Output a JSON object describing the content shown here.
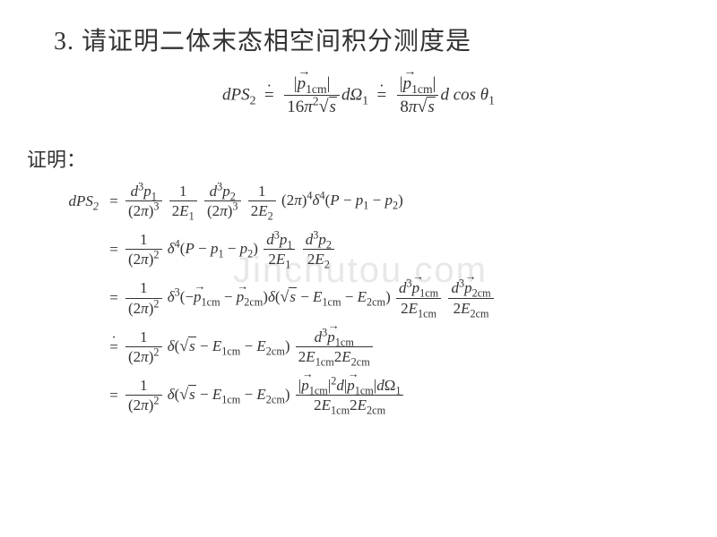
{
  "colors": {
    "background": "#ffffff",
    "text": "#333333",
    "watermark": "#e8e8e8"
  },
  "title": "3. 请证明二体末态相空间积分测度是",
  "proof_label": "证明：",
  "watermark": "Jinchutou.com",
  "top_formula": {
    "lhs": "dPS",
    "lhs_sub": "2",
    "rel1": "=",
    "frac1_num_vec": "p",
    "frac1_num_sub": "1cm",
    "frac1_den_a": "16",
    "frac1_den_pi": "π",
    "frac1_den_exp": "2",
    "frac1_den_sqrt": "s",
    "mid1": "dΩ",
    "mid1_sub": "1",
    "rel2": "=",
    "frac2_num_vec": "p",
    "frac2_num_sub": "1cm",
    "frac2_den_a": "8",
    "frac2_den_pi": "π",
    "frac2_den_sqrt": "s",
    "tail": "d cos θ",
    "tail_sub": "1"
  },
  "rows": [
    {
      "lhs": "dPS",
      "lhs_sub": "2",
      "eq": "=",
      "rhs_html": "<span class='frac'><span class='num'><span class='mi'>d</span><sup>3</sup><span class='mi'>p</span><sub>1</sub></span><span class='den'>(2<span class='mi'>π</span>)<sup>3</sup></span></span> <span class='frac'><span class='num'>1</span><span class='den'>2<span class='mi'>E</span><sub>1</sub></span></span> <span class='frac'><span class='num'><span class='mi'>d</span><sup>3</sup><span class='mi'>p</span><sub>2</sub></span><span class='den'>(2<span class='mi'>π</span>)<sup>3</sup></span></span> <span class='frac'><span class='num'>1</span><span class='den'>2<span class='mi'>E</span><sub>2</sub></span></span> (2<span class='mi'>π</span>)<sup>4</sup><span class='mi'>δ</span><sup>4</sup>(<span class='mi'>P</span> − <span class='mi'>p</span><sub>1</sub> − <span class='mi'>p</span><sub>2</sub>)"
    },
    {
      "lhs": "",
      "eq": "=",
      "rhs_html": "<span class='frac'><span class='num'>1</span><span class='den'>(2<span class='mi'>π</span>)<sup>2</sup></span></span> <span class='mi'>δ</span><sup>4</sup>(<span class='mi'>P</span> − <span class='mi'>p</span><sub>1</sub> − <span class='mi'>p</span><sub>2</sub>) <span class='frac'><span class='num'><span class='mi'>d</span><sup>3</sup><span class='mi'>p</span><sub>1</sub></span><span class='den'>2<span class='mi'>E</span><sub>1</sub></span></span> <span class='frac'><span class='num'><span class='mi'>d</span><sup>3</sup><span class='mi'>p</span><sub>2</sub></span><span class='den'>2<span class='mi'>E</span><sub>2</sub></span></span>"
    },
    {
      "lhs": "",
      "eq": "=",
      "rhs_html": "<span class='frac'><span class='num'>1</span><span class='den'>(2<span class='mi'>π</span>)<sup>2</sup></span></span> <span class='mi'>δ</span><sup>3</sup>(−<span class='mi vec'>p</span><sub>1cm</sub> − <span class='mi vec'>p</span><sub>2cm</sub>)<span class='mi'>δ</span>(<span class='sqrt'><span class='rad'>√</span><span class='arg'><span class='mi'>s</span></span></span> − <span class='mi'>E</span><sub>1cm</sub> − <span class='mi'>E</span><sub>2cm</sub>) <span class='frac'><span class='num'><span class='mi'>d</span><sup>3</sup><span class='mi vec'>p</span><sub>1cm</sub></span><span class='den'>2<span class='mi'>E</span><sub>1cm</sub></span></span> <span class='frac'><span class='num'><span class='mi'>d</span><sup>3</sup><span class='mi vec'>p</span><sub>2cm</sub></span><span class='den'>2<span class='mi'>E</span><sub>2cm</sub></span></span>"
    },
    {
      "lhs": "",
      "eq": "doteq",
      "rhs_html": "<span class='frac'><span class='num'>1</span><span class='den'>(2<span class='mi'>π</span>)<sup>2</sup></span></span> <span class='mi'>δ</span>(<span class='sqrt'><span class='rad'>√</span><span class='arg'><span class='mi'>s</span></span></span> − <span class='mi'>E</span><sub>1cm</sub> − <span class='mi'>E</span><sub>2cm</sub>) <span class='frac'><span class='num'><span class='mi'>d</span><sup>3</sup><span class='mi vec'>p</span><sub>1cm</sub></span><span class='den'>2<span class='mi'>E</span><sub>1cm</sub>2<span class='mi'>E</span><sub>2cm</sub></span></span>"
    },
    {
      "lhs": "",
      "eq": "=",
      "rhs_html": "<span class='frac'><span class='num'>1</span><span class='den'>(2<span class='mi'>π</span>)<sup>2</sup></span></span> <span class='mi'>δ</span>(<span class='sqrt'><span class='rad'>√</span><span class='arg'><span class='mi'>s</span></span></span> − <span class='mi'>E</span><sub>1cm</sub> − <span class='mi'>E</span><sub>2cm</sub>) <span class='frac'><span class='num'>|<span class='mi vec'>p</span><sub>1cm</sub>|<sup>2</sup><span class='mi'>d</span>|<span class='mi vec'>p</span><sub>1cm</sub>|<span class='mi'>d</span>Ω<sub>1</sub></span><span class='den'>2<span class='mi'>E</span><sub>1cm</sub>2<span class='mi'>E</span><sub>2cm</sub></span></span>"
    }
  ]
}
